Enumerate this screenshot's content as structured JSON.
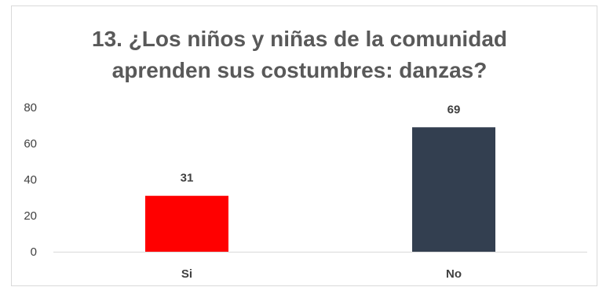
{
  "chart_data": {
    "type": "bar",
    "title_lines": [
      "13. ¿Los niños y niñas de la comunidad",
      "aprenden sus costumbres: danzas?"
    ],
    "categories": [
      "Si",
      "No"
    ],
    "values": [
      31,
      69
    ],
    "bar_colors": [
      "#ff0000",
      "#333f50"
    ],
    "ylim": [
      0,
      80
    ],
    "yticks": [
      "0",
      "20",
      "40",
      "60",
      "80"
    ],
    "grid": false,
    "legend": "none",
    "xlabel": "",
    "ylabel": ""
  }
}
